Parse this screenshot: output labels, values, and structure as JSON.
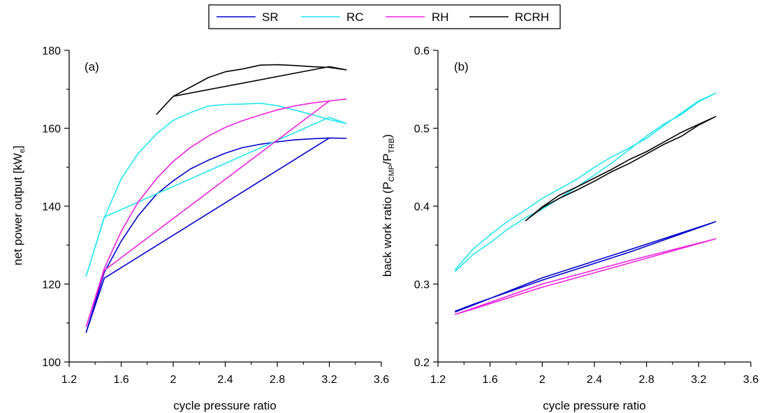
{
  "colors": {
    "SR": "#0000cc",
    "RC": "#22e6f0",
    "RH": "#ee22dd",
    "RCRH": "#000000"
  },
  "legend": [
    "SR",
    "RC",
    "RH",
    "RCRH"
  ],
  "chart_data": [
    {
      "type": "line",
      "panel_label": "(a)",
      "xlabel": "cycle pressure ratio",
      "ylabel_main": "net power output [kW",
      "ylabel_sub": "e",
      "ylabel_tail": "]",
      "xlim": [
        1.2,
        3.6
      ],
      "ylim": [
        100,
        180
      ],
      "xticks": [
        "1.2",
        "1.6",
        "2",
        "2.4",
        "2.8",
        "3.2",
        "3.6"
      ],
      "yticks": [
        "100",
        "120",
        "140",
        "160",
        "180"
      ],
      "legend_position": "top-center (outside)",
      "series": [
        {
          "name": "SR",
          "x": [
            1.33,
            1.47,
            1.6,
            1.73,
            1.87,
            2.0,
            2.13,
            2.27,
            2.4,
            2.53,
            2.67,
            2.8,
            2.93,
            3.07,
            3.2,
            3.33,
            3.2,
            1.47,
            1.33
          ],
          "y": [
            107.5,
            123,
            131,
            137.5,
            143,
            146.5,
            149.5,
            151.8,
            153.6,
            155,
            155.9,
            156.5,
            157,
            157.3,
            157.5,
            157.4,
            157.5,
            121.5,
            107.5
          ]
        },
        {
          "name": "RC",
          "x": [
            1.33,
            1.47,
            1.6,
            1.73,
            1.87,
            2.0,
            2.13,
            2.27,
            2.4,
            2.53,
            2.67,
            2.8,
            2.93,
            3.07,
            3.2,
            3.33,
            3.2,
            1.47,
            1.33
          ],
          "y": [
            122,
            137,
            147,
            153.5,
            158.5,
            162,
            164,
            165.7,
            166.1,
            166.2,
            166.4,
            165.8,
            164.7,
            163.5,
            162.2,
            161.2,
            162.8,
            137.2,
            122
          ]
        },
        {
          "name": "RH",
          "x": [
            1.33,
            1.47,
            1.6,
            1.73,
            1.87,
            2.0,
            2.13,
            2.27,
            2.4,
            2.53,
            2.67,
            2.8,
            2.93,
            3.07,
            3.2,
            3.33,
            3.2,
            1.47,
            1.33
          ],
          "y": [
            109,
            124,
            133.5,
            141,
            147,
            151.5,
            155,
            158,
            160.2,
            161.9,
            163.4,
            164.7,
            165.7,
            166.5,
            167,
            167.5,
            167,
            123.5,
            109
          ]
        },
        {
          "name": "RCRH",
          "x": [
            1.87,
            2.0,
            2.13,
            2.27,
            2.4,
            2.53,
            2.67,
            2.8,
            2.93,
            3.07,
            3.2,
            3.33,
            3.2,
            2.0
          ],
          "y": [
            163.5,
            168.2,
            170.5,
            173,
            174.5,
            175.2,
            176.2,
            176.3,
            176.1,
            175.8,
            175.6,
            175,
            175.8,
            168.2
          ]
        }
      ]
    },
    {
      "type": "line",
      "panel_label": "(b)",
      "xlabel": "cycle pressure ratio",
      "ylabel_main": "back work ratio (P",
      "ylabel_sub1": "CMP",
      "ylabel_mid": "/P",
      "ylabel_sub2": "TRB",
      "ylabel_tail": ")",
      "xlim": [
        1.2,
        3.6
      ],
      "ylim": [
        0.2,
        0.6
      ],
      "xticks": [
        "1.2",
        "1.6",
        "2",
        "2.4",
        "2.8",
        "3.2",
        "3.6"
      ],
      "yticks": [
        "0.2",
        "0.3",
        "0.4",
        "0.5",
        "0.6"
      ],
      "series": [
        {
          "name": "SR",
          "x": [
            1.33,
            1.47,
            2.0,
            2.67,
            3.33,
            2.67,
            2.0,
            1.47,
            1.33
          ],
          "y": [
            0.265,
            0.274,
            0.305,
            0.341,
            0.38,
            0.344,
            0.308,
            0.273,
            0.264
          ]
        },
        {
          "name": "RC",
          "x": [
            1.33,
            1.47,
            1.6,
            1.73,
            1.87,
            2.0,
            2.13,
            2.27,
            2.4,
            2.53,
            2.67,
            2.8,
            2.93,
            3.07,
            3.2,
            3.33,
            3.2,
            3.07,
            2.93,
            2.8,
            2.67,
            2.53,
            2.4,
            2.27,
            2.13,
            2.0,
            1.87,
            1.73,
            1.6,
            1.47,
            1.33
          ],
          "y": [
            0.316,
            0.338,
            0.353,
            0.37,
            0.385,
            0.396,
            0.41,
            0.425,
            0.44,
            0.455,
            0.473,
            0.49,
            0.505,
            0.518,
            0.534,
            0.545,
            0.535,
            0.52,
            0.503,
            0.487,
            0.475,
            0.463,
            0.45,
            0.435,
            0.422,
            0.41,
            0.395,
            0.38,
            0.363,
            0.345,
            0.318
          ]
        },
        {
          "name": "RH",
          "x": [
            1.33,
            1.47,
            2.0,
            2.67,
            3.33,
            2.67,
            2.0,
            1.47,
            1.33
          ],
          "y": [
            0.261,
            0.268,
            0.296,
            0.327,
            0.358,
            0.33,
            0.3,
            0.269,
            0.261
          ]
        },
        {
          "name": "RCRH",
          "x": [
            1.87,
            2.0,
            2.13,
            2.27,
            2.4,
            2.53,
            2.67,
            2.8,
            2.93,
            3.07,
            3.2,
            3.33,
            3.2,
            3.07,
            2.93,
            2.8,
            2.67,
            2.53,
            2.4,
            2.27,
            2.13,
            2.0,
            1.87
          ],
          "y": [
            0.381,
            0.398,
            0.41,
            0.421,
            0.432,
            0.444,
            0.455,
            0.467,
            0.479,
            0.49,
            0.504,
            0.515,
            0.505,
            0.495,
            0.482,
            0.47,
            0.46,
            0.447,
            0.436,
            0.425,
            0.414,
            0.399,
            0.381
          ]
        }
      ]
    }
  ]
}
